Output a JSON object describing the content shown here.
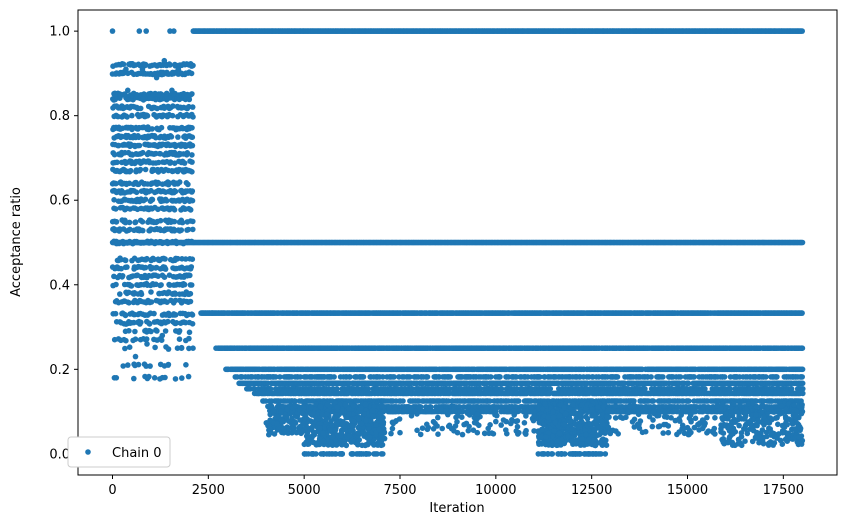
{
  "chart_data": {
    "type": "scatter",
    "xlabel": "Iteration",
    "ylabel": "Acceptance ratio",
    "xlim": [
      -900,
      18900
    ],
    "ylim": [
      -0.05,
      1.05
    ],
    "xticks": [
      0,
      2500,
      5000,
      7500,
      10000,
      12500,
      15000,
      17500
    ],
    "yticks": [
      0.0,
      0.2,
      0.4,
      0.6,
      0.8,
      1.0
    ],
    "legend": {
      "location": "lower-left",
      "entries": [
        "Chain 0"
      ]
    },
    "grid": false,
    "series": [
      {
        "name": "Chain 0",
        "color": "#1f77b4",
        "marker": "circle",
        "description_of_structure": {
          "warmup_phase_x": [
            0,
            2100
          ],
          "warmup_levels": [
            0.18,
            0.21,
            0.25,
            0.27,
            0.29,
            0.31,
            0.33,
            0.36,
            0.38,
            0.4,
            0.42,
            0.44,
            0.46,
            0.5,
            0.53,
            0.55,
            0.58,
            0.6,
            0.62,
            0.64,
            0.67,
            0.69,
            0.71,
            0.73,
            0.75,
            0.77,
            0.8,
            0.82,
            0.84,
            0.85,
            0.9,
            0.92
          ],
          "sampling_phase_x": [
            2100,
            18000
          ],
          "sampling_levels": [
            1.0,
            0.5,
            0.333,
            0.25,
            0.2,
            0.167,
            0.143,
            0.125,
            0.111,
            0.1
          ],
          "dense_low_regions_x": [
            [
              5000,
              7100
            ],
            [
              11100,
              12900
            ],
            [
              15900,
              18000
            ]
          ]
        },
        "points": [
          [
            0,
            1.0
          ],
          [
            700,
            1.0
          ],
          [
            880,
            1.0
          ],
          [
            1500,
            1.0
          ],
          [
            1600,
            1.0
          ],
          [
            100,
            0.92
          ],
          [
            350,
            0.91
          ],
          [
            600,
            0.92
          ],
          [
            780,
            0.91
          ],
          [
            1150,
            0.89
          ],
          [
            1350,
            0.93
          ],
          [
            1500,
            0.92
          ],
          [
            1720,
            0.91
          ],
          [
            2000,
            0.92
          ],
          [
            50,
            0.85
          ],
          [
            400,
            0.86
          ],
          [
            800,
            0.84
          ],
          [
            1200,
            0.85
          ],
          [
            1550,
            0.86
          ],
          [
            1950,
            0.85
          ],
          [
            50,
            0.18
          ],
          [
            100,
            0.18
          ],
          [
            1100,
            0.18
          ],
          [
            400,
            0.21
          ],
          [
            1450,
            0.21
          ],
          [
            600,
            0.23
          ],
          [
            1800,
            0.25
          ],
          [
            2100,
            0.25
          ],
          [
            300,
            0.27
          ],
          [
            900,
            0.26
          ],
          [
            1300,
            0.28
          ],
          [
            1700,
            0.29
          ],
          [
            2600,
            0.333
          ],
          [
            2700,
            0.25
          ],
          [
            2850,
            0.25
          ],
          [
            3000,
            0.2
          ],
          [
            3200,
            0.2
          ],
          [
            3400,
            0.167
          ],
          [
            3600,
            0.167
          ],
          [
            3800,
            0.143
          ],
          [
            4000,
            0.125
          ],
          [
            4200,
            0.1
          ],
          [
            4400,
            0.1
          ],
          [
            4100,
            0.06
          ],
          [
            4300,
            0.07
          ],
          [
            4600,
            0.06
          ],
          [
            4800,
            0.05
          ],
          [
            5200,
            0.04
          ],
          [
            5500,
            0.03
          ],
          [
            6100,
            0.02
          ],
          [
            6400,
            0.0
          ],
          [
            6600,
            0.0
          ],
          [
            6900,
            0.0
          ],
          [
            7050,
            0.0
          ],
          [
            7300,
            0.1
          ],
          [
            7500,
            0.05
          ],
          [
            7800,
            0.09
          ],
          [
            8200,
            0.07
          ],
          [
            8600,
            0.06
          ],
          [
            9000,
            0.05
          ],
          [
            9400,
            0.1
          ],
          [
            9800,
            0.06
          ],
          [
            10200,
            0.08
          ],
          [
            10600,
            0.05
          ],
          [
            11000,
            0.09
          ],
          [
            11300,
            0.04
          ],
          [
            11600,
            0.03
          ],
          [
            11800,
            0.0
          ],
          [
            12000,
            0.0
          ],
          [
            12200,
            0.0
          ],
          [
            12400,
            0.0
          ],
          [
            12600,
            0.02
          ],
          [
            12850,
            0.03
          ],
          [
            13300,
            0.1
          ],
          [
            13700,
            0.07
          ],
          [
            14100,
            0.08
          ],
          [
            14500,
            0.05
          ],
          [
            14900,
            0.06
          ],
          [
            15300,
            0.07
          ],
          [
            15700,
            0.06
          ],
          [
            16100,
            0.04
          ],
          [
            16500,
            0.03
          ],
          [
            16800,
            0.04
          ],
          [
            17200,
            0.05
          ],
          [
            17600,
            0.03
          ],
          [
            17900,
            0.04
          ],
          [
            17950,
            0.06
          ]
        ]
      }
    ]
  }
}
